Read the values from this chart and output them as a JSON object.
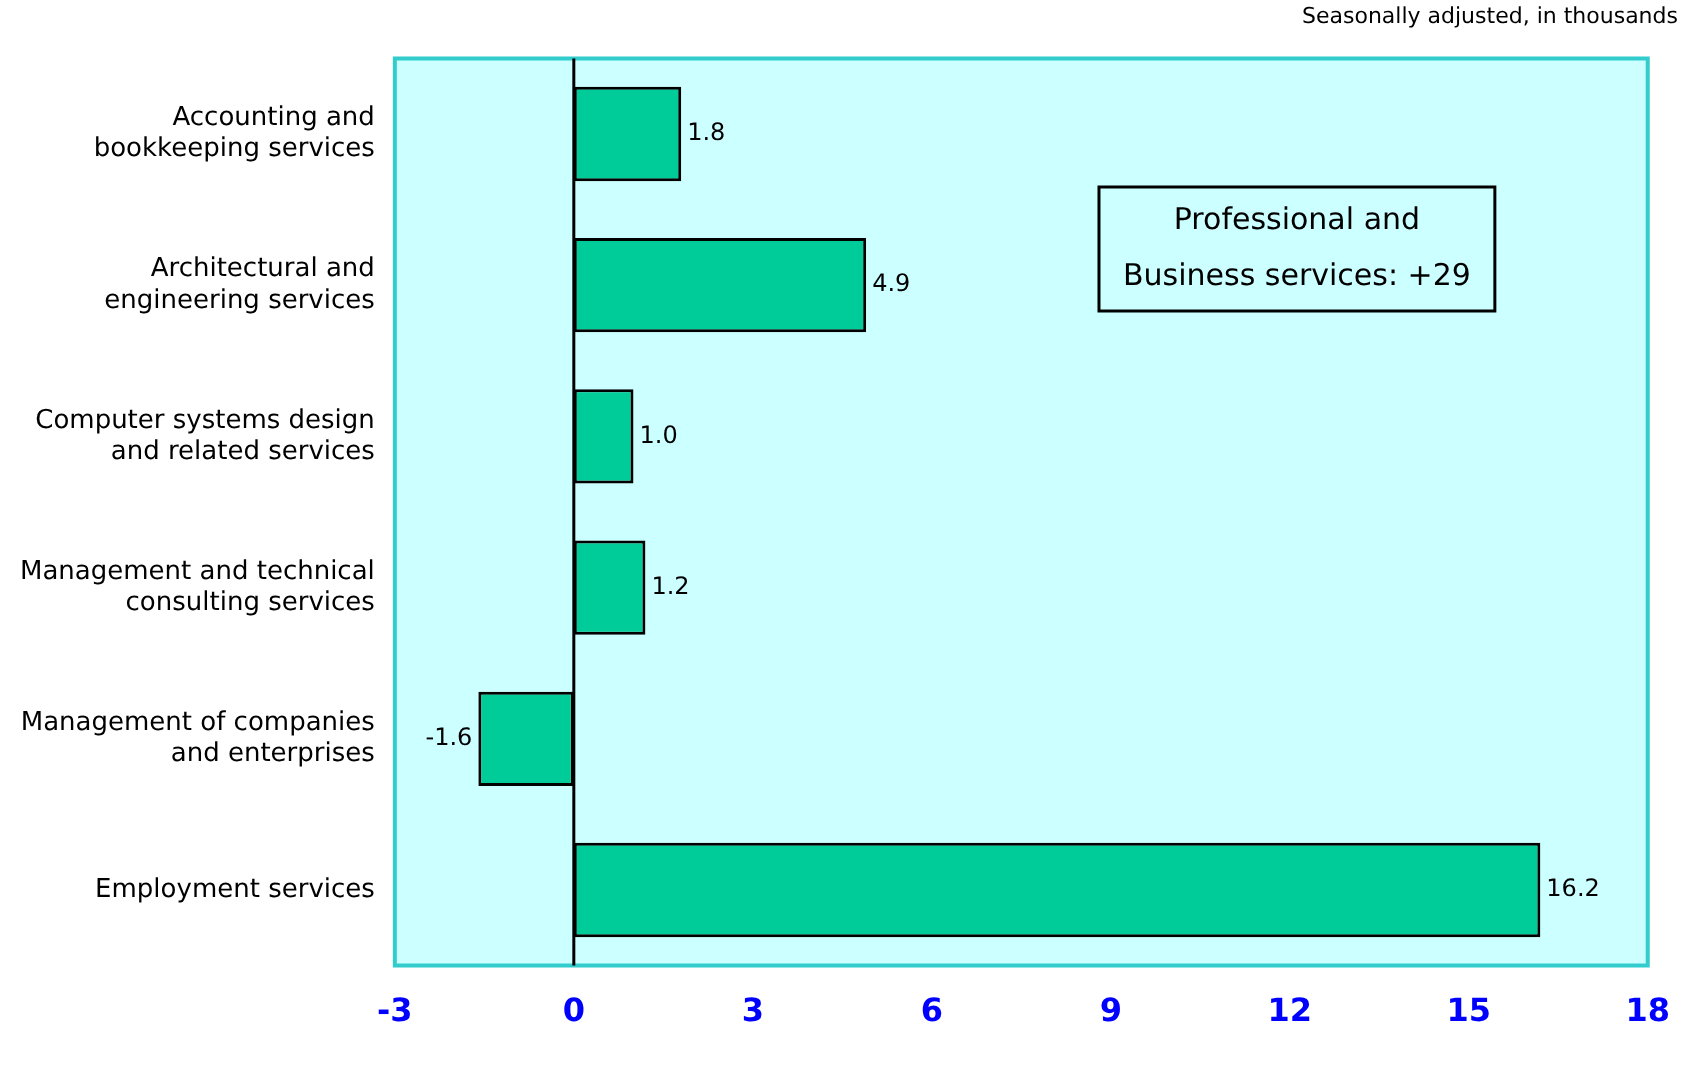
{
  "chart_data": {
    "type": "bar",
    "orientation": "horizontal",
    "subtitle": "Seasonally adjusted, in thousands",
    "categories": [
      "Accounting and bookkeeping services",
      "Architectural and engineering services",
      "Computer systems design and related services",
      "Management and technical consulting services",
      "Management of companies and enterprises",
      "Employment services"
    ],
    "values": [
      1.8,
      4.9,
      1.0,
      1.2,
      -1.6,
      16.2
    ],
    "color": "#00cc99",
    "value_labels": [
      "1.8",
      "4.9",
      "1.0",
      "1.2",
      "-1.6",
      "16.2"
    ],
    "xlim": [
      -3,
      18
    ],
    "xticks": [
      -3,
      0,
      3,
      6,
      9,
      12,
      15,
      18
    ],
    "ref_lines": [
      {
        "axis": "x",
        "value": 0,
        "color": "#000000"
      }
    ],
    "legend": false,
    "annotations": [
      "Professional and Business services: +29"
    ]
  }
}
